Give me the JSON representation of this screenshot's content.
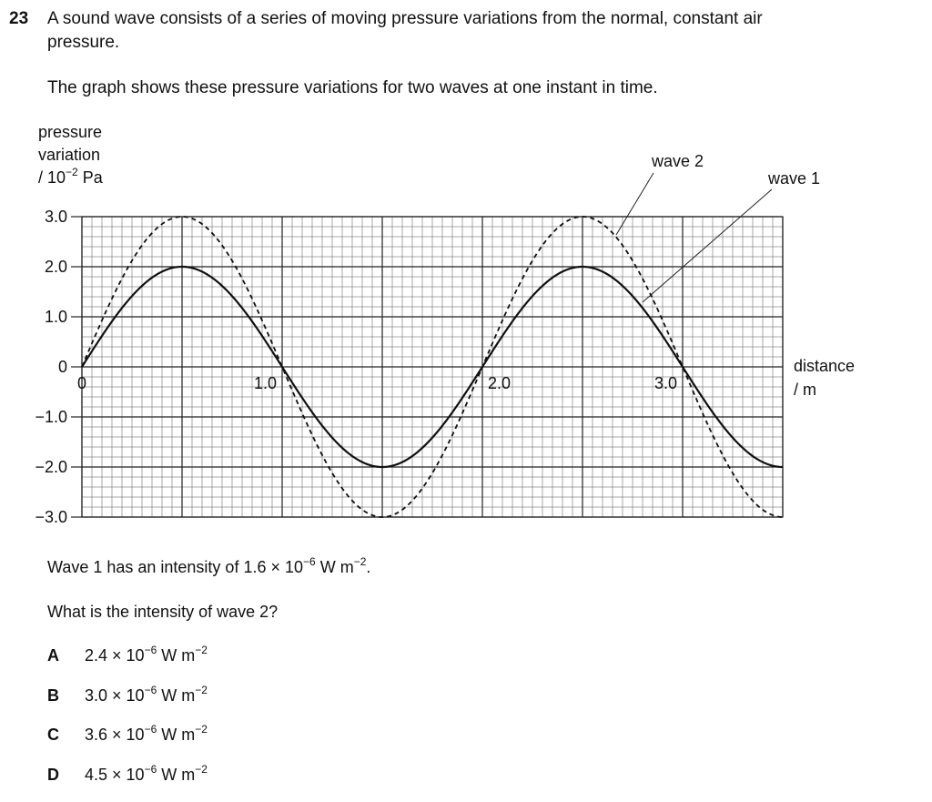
{
  "question": {
    "number": "23",
    "line1": "A sound wave consists of a series of moving pressure variations from the normal, constant air",
    "line2": "pressure.",
    "line3": "The graph shows these pressure variations for two waves at one instant in time."
  },
  "chart_data": {
    "type": "line",
    "ylabel": [
      "pressure",
      "variation",
      "/ 10",
      "−2",
      " Pa"
    ],
    "xlabel": [
      "distance",
      "/ m"
    ],
    "xlim": [
      0,
      3.5
    ],
    "ylim": [
      -3.0,
      3.0
    ],
    "grid": true,
    "ytick_labels": [
      "3.0",
      "2.0",
      "1.0",
      "0",
      "−1.0",
      "−2.0",
      "−3.0"
    ],
    "ytick_values": [
      3.0,
      2.0,
      1.0,
      0,
      -1.0,
      -2.0,
      -3.0
    ],
    "xtick_labels": [
      "0",
      "1.0",
      "2.0",
      "3.0"
    ],
    "xtick_values": [
      0,
      1.0,
      2.0,
      3.0
    ],
    "series": [
      {
        "name": "wave 1",
        "amplitude": 2.0,
        "wavelength": 2.0,
        "style": "solid",
        "x": [
          0,
          0.5,
          1.0,
          1.5,
          2.0,
          2.5,
          3.0,
          3.5
        ],
        "y": [
          0,
          2.0,
          0,
          -2.0,
          0,
          2.0,
          0,
          -2.0
        ]
      },
      {
        "name": "wave 2",
        "amplitude": 3.0,
        "wavelength": 2.0,
        "style": "dashed",
        "x": [
          0,
          0.5,
          1.0,
          1.5,
          2.0,
          2.5,
          3.0,
          3.5
        ],
        "y": [
          0,
          3.0,
          0,
          -3.0,
          0,
          3.0,
          0,
          -3.0
        ]
      }
    ]
  },
  "statement": {
    "pre": "Wave 1 has an intensity of 1.6 × 10",
    "exp1": "−6",
    "mid": " W m",
    "exp2": "−2",
    "post": "."
  },
  "prompt": "What is the intensity of wave 2?",
  "options": [
    {
      "letter": "A",
      "text": "2.4 × 10",
      "exp1": "−6",
      "unit": " W m",
      "exp2": "−2"
    },
    {
      "letter": "B",
      "text": "3.0 × 10",
      "exp1": "−6",
      "unit": " W m",
      "exp2": "−2"
    },
    {
      "letter": "C",
      "text": "3.6 × 10",
      "exp1": "−6",
      "unit": " W m",
      "exp2": "−2"
    },
    {
      "letter": "D",
      "text": "4.5 × 10",
      "exp1": "−6",
      "unit": " W m",
      "exp2": "−2"
    }
  ]
}
